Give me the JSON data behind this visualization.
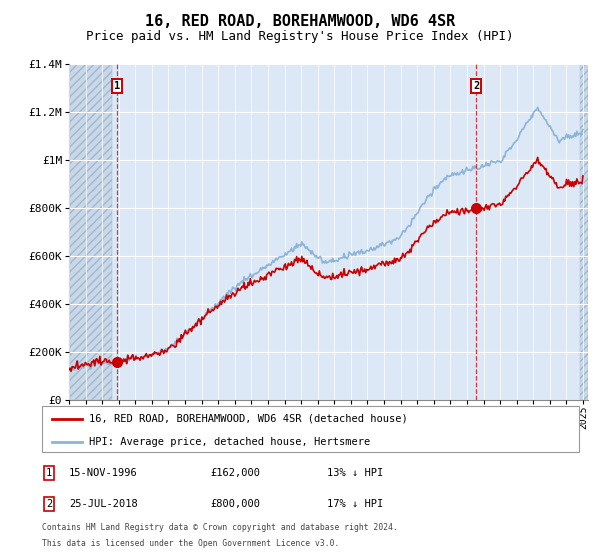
{
  "title": "16, RED ROAD, BOREHAMWOOD, WD6 4SR",
  "subtitle": "Price paid vs. HM Land Registry's House Price Index (HPI)",
  "ylim": [
    0,
    1400000
  ],
  "yticks": [
    0,
    200000,
    400000,
    600000,
    800000,
    1000000,
    1200000,
    1400000
  ],
  "xstart_year": 1994,
  "xend_year": 2025,
  "hpi_color": "#8bb4d8",
  "price_color": "#cc0000",
  "annotation1_year": 1996.88,
  "annotation2_year": 2018.56,
  "annotation1_price": 162000,
  "annotation2_price": 800000,
  "legend_line1": "16, RED ROAD, BOREHAMWOOD, WD6 4SR (detached house)",
  "legend_line2": "HPI: Average price, detached house, Hertsmere",
  "table_row1_num": "1",
  "table_row1_date": "15-NOV-1996",
  "table_row1_price": "£162,000",
  "table_row1_hpi": "13% ↓ HPI",
  "table_row2_num": "2",
  "table_row2_date": "25-JUL-2018",
  "table_row2_price": "£800,000",
  "table_row2_hpi": "17% ↓ HPI",
  "footnote1": "Contains HM Land Registry data © Crown copyright and database right 2024.",
  "footnote2": "This data is licensed under the Open Government Licence v3.0.",
  "bg_color": "#dce8f5",
  "grid_color": "#ffffff",
  "hatch_fill": "#c8d8e8",
  "title_fontsize": 11,
  "subtitle_fontsize": 9,
  "tick_fontsize": 7
}
